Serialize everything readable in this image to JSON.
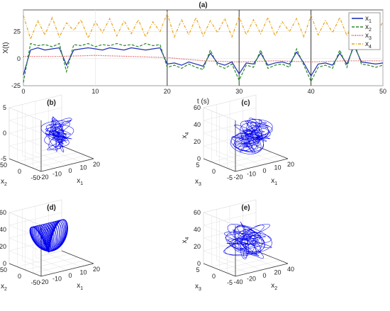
{
  "chart_data": [
    {
      "type": "line",
      "title": "(a)",
      "xlabel": "t (s)",
      "ylabel": "X(t)",
      "xlim": [
        0,
        50
      ],
      "ylim": [
        -25,
        45
      ],
      "xticks": [
        "0",
        "10",
        "20",
        "30",
        "40",
        "50"
      ],
      "yticks": [
        "-25",
        "0",
        "25"
      ],
      "vertical_lines_x": [
        20,
        30,
        40
      ],
      "grid": true,
      "legend_position": "top-right",
      "series": [
        {
          "name": "x",
          "name_subscript": "1",
          "color": "#1f2fb4",
          "style": "solid",
          "x": [
            0,
            1,
            2,
            3,
            4,
            5,
            6,
            7,
            8,
            9,
            10,
            11,
            12,
            13,
            14,
            15,
            16,
            17,
            18,
            19,
            20,
            21,
            22,
            23,
            24,
            25,
            26,
            27,
            28,
            29,
            30,
            31,
            32,
            33,
            34,
            35,
            36,
            37,
            38,
            39,
            40,
            41,
            42,
            43,
            44,
            45,
            46,
            47,
            48,
            49,
            50
          ],
          "values": [
            -15,
            8,
            10,
            8,
            9,
            10,
            -6,
            8,
            9,
            10,
            9,
            8,
            10,
            9,
            8,
            10,
            9,
            8,
            9,
            10,
            -5,
            -4,
            -6,
            -3,
            -5,
            -7,
            5,
            -4,
            -6,
            -3,
            -14,
            -4,
            -5,
            5,
            -6,
            -4,
            -3,
            -5,
            6,
            -4,
            -16,
            -5,
            -4,
            -6,
            5,
            -5,
            12,
            -3,
            -4,
            -5,
            -4
          ]
        },
        {
          "name": "x",
          "name_subscript": "2",
          "color": "#2a8a2a",
          "style": "dashed",
          "x": [
            0,
            1,
            2,
            3,
            4,
            5,
            6,
            7,
            8,
            9,
            10,
            11,
            12,
            13,
            14,
            15,
            16,
            17,
            18,
            19,
            20,
            21,
            22,
            23,
            24,
            25,
            26,
            27,
            28,
            29,
            30,
            31,
            32,
            33,
            34,
            35,
            36,
            37,
            38,
            39,
            40,
            41,
            42,
            43,
            44,
            45,
            46,
            47,
            48,
            49,
            50
          ],
          "values": [
            -22,
            14,
            12,
            13,
            11,
            14,
            -12,
            13,
            12,
            14,
            11,
            13,
            12,
            14,
            12,
            13,
            11,
            14,
            12,
            13,
            -8,
            -6,
            -9,
            -5,
            -8,
            -10,
            8,
            -6,
            -9,
            -5,
            -20,
            -6,
            -8,
            8,
            -9,
            -6,
            -5,
            -8,
            9,
            -6,
            -21,
            -8,
            -6,
            -9,
            8,
            -8,
            15,
            -5,
            -6,
            -8,
            -6
          ]
        },
        {
          "name": "x",
          "name_subscript": "3",
          "color": "#d42b2b",
          "style": "dotted",
          "x": [
            0,
            5,
            10,
            15,
            20,
            25,
            30,
            35,
            40,
            45,
            50
          ],
          "values": [
            2,
            2,
            3,
            2,
            1,
            -2,
            -3,
            -2,
            -3,
            -2,
            -2
          ]
        },
        {
          "name": "x",
          "name_subscript": "4",
          "color": "#e8a317",
          "style": "dashdot",
          "x": [
            0,
            1,
            2,
            3,
            4,
            5,
            6,
            7,
            8,
            9,
            10,
            11,
            12,
            13,
            14,
            15,
            16,
            17,
            18,
            19,
            20,
            21,
            22,
            23,
            24,
            25,
            26,
            27,
            28,
            29,
            30,
            31,
            32,
            33,
            34,
            35,
            36,
            37,
            38,
            39,
            40,
            41,
            42,
            43,
            44,
            45,
            46,
            47,
            48,
            49,
            50
          ],
          "values": [
            40,
            18,
            35,
            22,
            38,
            20,
            33,
            26,
            36,
            19,
            34,
            24,
            37,
            21,
            35,
            23,
            36,
            20,
            34,
            25,
            42,
            20,
            36,
            22,
            38,
            21,
            35,
            24,
            37,
            20,
            39,
            22,
            36,
            23,
            38,
            21,
            34,
            25,
            37,
            20,
            40,
            22,
            35,
            24,
            38,
            21,
            36,
            23,
            37,
            22,
            34
          ]
        }
      ]
    },
    {
      "type": "3d-line",
      "title": "(b)",
      "xlabel": "x",
      "xlabel_subscript": "1",
      "ylabel": "x",
      "ylabel_subscript": "2",
      "zlabel": "x",
      "zlabel_subscript": "3",
      "xticks": [
        "-20",
        "-10",
        "0",
        "10",
        "20"
      ],
      "yticks": [
        "-50",
        "0",
        "50"
      ],
      "zticks": [
        "-5",
        "0",
        "5"
      ],
      "line_color": "#0000ee"
    },
    {
      "type": "3d-line",
      "title": "(c)",
      "xlabel": "x",
      "xlabel_subscript": "1",
      "ylabel": "x",
      "ylabel_subscript": "3",
      "zlabel": "x",
      "zlabel_subscript": "4",
      "xticks": [
        "-20",
        "-10",
        "0",
        "10",
        "20"
      ],
      "yticks": [
        "-5",
        "0",
        "5"
      ],
      "zticks": [
        "0",
        "20",
        "40",
        "60"
      ],
      "line_color": "#0000ee"
    },
    {
      "type": "3d-line",
      "title": "(d)",
      "xlabel": "x",
      "xlabel_subscript": "1",
      "ylabel": "x",
      "ylabel_subscript": "2",
      "zlabel": "x",
      "zlabel_subscript": "4",
      "xticks": [
        "-20",
        "-10",
        "0",
        "10",
        "20"
      ],
      "yticks": [
        "-50",
        "0",
        "50"
      ],
      "zticks": [
        "0",
        "20",
        "40",
        "60"
      ],
      "line_color": "#0000ee"
    },
    {
      "type": "3d-line",
      "title": "(e)",
      "xlabel": "x",
      "xlabel_subscript": "2",
      "ylabel": "x",
      "ylabel_subscript": "3",
      "zlabel": "x",
      "zlabel_subscript": "4",
      "xticks": [
        "-40",
        "-20",
        "0",
        "20",
        "40"
      ],
      "yticks": [
        "-5",
        "0",
        "5"
      ],
      "zticks": [
        "0",
        "20",
        "40",
        "60"
      ],
      "line_color": "#0000ee"
    }
  ]
}
